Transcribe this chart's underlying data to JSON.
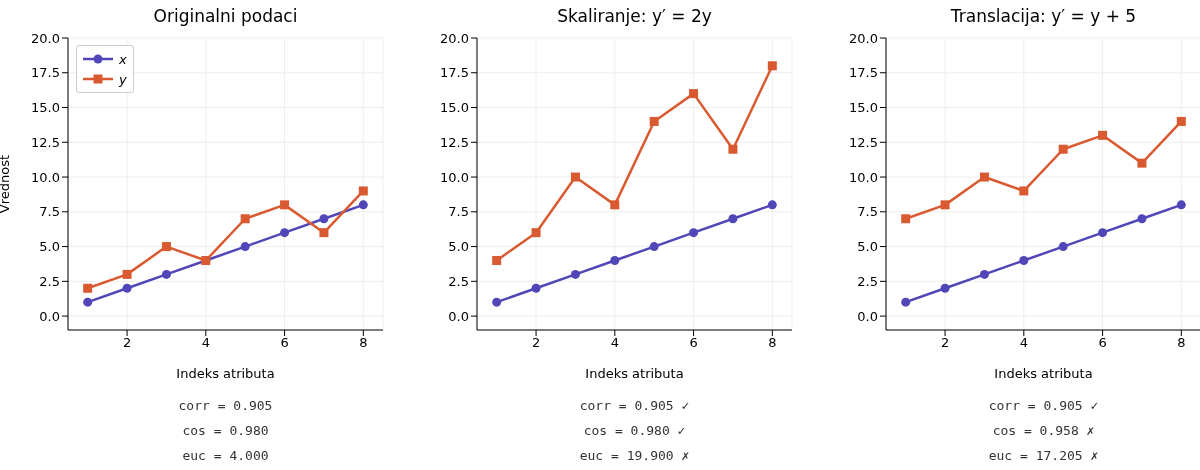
{
  "chart_data": [
    {
      "type": "line",
      "title": "Originalni podaci",
      "xlabel": "Indeks atributa",
      "ylabel": "Vrednost",
      "x": [
        1,
        2,
        3,
        4,
        5,
        6,
        7,
        8
      ],
      "xlim": [
        0.5,
        8.5
      ],
      "xticks": [
        2,
        4,
        6,
        8
      ],
      "ylim": [
        -1,
        20
      ],
      "yticks": [
        {
          "value": 0,
          "label": "0.0"
        },
        {
          "value": 2.5,
          "label": "2.5"
        },
        {
          "value": 5,
          "label": "5.0"
        },
        {
          "value": 7.5,
          "label": "7.5"
        },
        {
          "value": 10,
          "label": "10.0"
        },
        {
          "value": 12.5,
          "label": "12.5"
        },
        {
          "value": 15,
          "label": "15.0"
        },
        {
          "value": 17.5,
          "label": "17.5"
        },
        {
          "value": 20,
          "label": "20.0"
        }
      ],
      "grid": true,
      "legend": "top left",
      "line_style": "solid",
      "series": [
        {
          "name": "x",
          "color": "#5046b8",
          "marker": "circle",
          "values": [
            1,
            2,
            3,
            4,
            5,
            6,
            7,
            8
          ]
        },
        {
          "name": "y",
          "color": "#d95a30",
          "marker": "square",
          "values": [
            2,
            3,
            5,
            4,
            7,
            8,
            6,
            9
          ]
        }
      ],
      "annotations": [
        "corr = 0.905",
        "cos = 0.980",
        "euc = 4.000"
      ]
    },
    {
      "type": "line",
      "title": "Skaliranje: y′ = 2y",
      "xlabel": "Indeks atributa",
      "x": [
        1,
        2,
        3,
        4,
        5,
        6,
        7,
        8
      ],
      "xlim": [
        0.5,
        8.5
      ],
      "xticks": [
        2,
        4,
        6,
        8
      ],
      "ylim": [
        -1,
        20
      ],
      "yticks": [
        {
          "value": 0,
          "label": "0.0"
        },
        {
          "value": 2.5,
          "label": "2.5"
        },
        {
          "value": 5,
          "label": "5.0"
        },
        {
          "value": 7.5,
          "label": "7.5"
        },
        {
          "value": 10,
          "label": "10.0"
        },
        {
          "value": 12.5,
          "label": "12.5"
        },
        {
          "value": 15,
          "label": "15.0"
        },
        {
          "value": 17.5,
          "label": "17.5"
        },
        {
          "value": 20,
          "label": "20.0"
        }
      ],
      "grid": true,
      "line_style": "solid",
      "series": [
        {
          "color": "#5046b8",
          "marker": "circle",
          "values": [
            1,
            2,
            3,
            4,
            5,
            6,
            7,
            8
          ]
        },
        {
          "color": "#d95a30",
          "marker": "square",
          "values": [
            4,
            6,
            10,
            8,
            14,
            16,
            12,
            18
          ]
        }
      ],
      "annotations": [
        "corr = 0.905 ✓",
        "cos = 0.980 ✓",
        "euc = 19.900 ✗"
      ]
    },
    {
      "type": "line",
      "title": "Translacija: y′ = y + 5",
      "xlabel": "Indeks atributa",
      "x": [
        1,
        2,
        3,
        4,
        5,
        6,
        7,
        8
      ],
      "xlim": [
        0.5,
        8.5
      ],
      "xticks": [
        2,
        4,
        6,
        8
      ],
      "ylim": [
        -1,
        20
      ],
      "yticks": [
        {
          "value": 0,
          "label": "0.0"
        },
        {
          "value": 2.5,
          "label": "2.5"
        },
        {
          "value": 5,
          "label": "5.0"
        },
        {
          "value": 7.5,
          "label": "7.5"
        },
        {
          "value": 10,
          "label": "10.0"
        },
        {
          "value": 12.5,
          "label": "12.5"
        },
        {
          "value": 15,
          "label": "15.0"
        },
        {
          "value": 17.5,
          "label": "17.5"
        },
        {
          "value": 20,
          "label": "20.0"
        }
      ],
      "grid": true,
      "line_style": "solid",
      "series": [
        {
          "color": "#5046b8",
          "marker": "circle",
          "values": [
            1,
            2,
            3,
            4,
            5,
            6,
            7,
            8
          ]
        },
        {
          "color": "#d95a30",
          "marker": "square",
          "values": [
            7,
            8,
            10,
            9,
            12,
            13,
            11,
            14
          ]
        }
      ],
      "annotations": [
        "corr = 0.905 ✓",
        "cos = 0.958 ✗",
        "euc = 17.205 ✗"
      ]
    }
  ]
}
